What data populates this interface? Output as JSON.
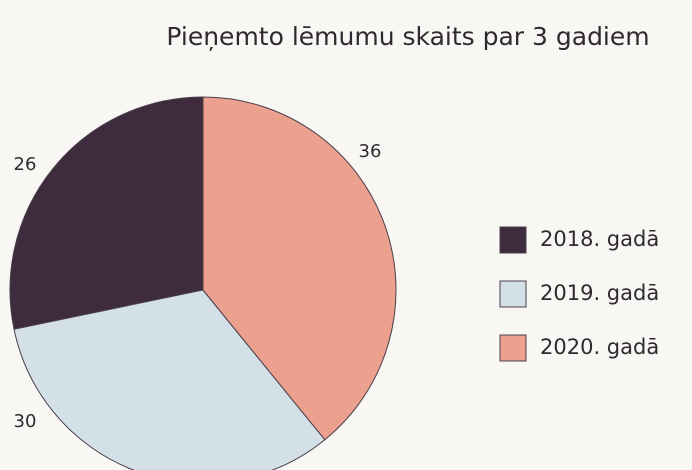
{
  "chart_data": {
    "type": "pie",
    "title": "Pieņemto lēmumu skaits par 3 gadiem",
    "categories": [
      "2018. gadā",
      "2019. gadā",
      "2020. gadā"
    ],
    "values": [
      26,
      30,
      36
    ],
    "colors": [
      "#3e2b3e",
      "#d4e0e7",
      "#eca18e"
    ],
    "legend": "right"
  }
}
